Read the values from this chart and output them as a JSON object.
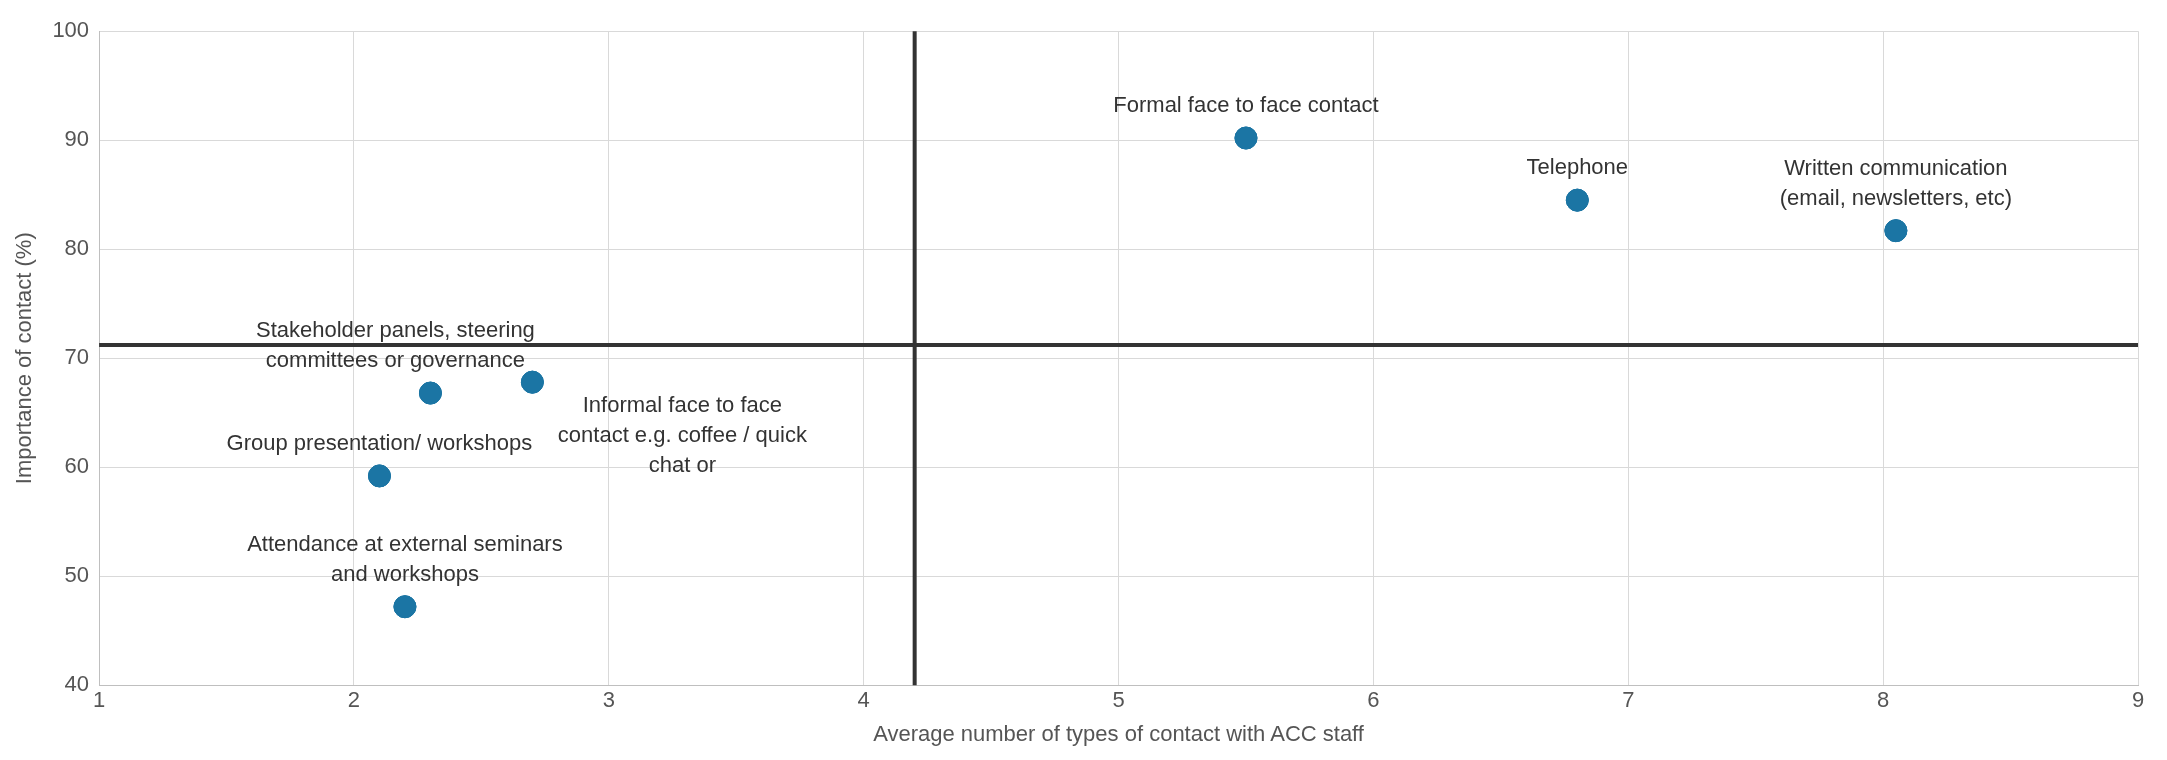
{
  "chart_data": {
    "type": "scatter",
    "xlabel": "Average number of types of contact with ACC staff",
    "ylabel": "Importance of contact (%)",
    "x": [
      5.5,
      6.8,
      8.05,
      2.3,
      2.7,
      2.1,
      2.2
    ],
    "series": [
      {
        "color": "#1b75a4",
        "values": [
          90.2,
          84.5,
          81.7,
          66.8,
          67.8,
          59.2,
          47.2
        ]
      }
    ],
    "xlim": [
      1,
      9
    ],
    "xticks": [
      1,
      2,
      3,
      4,
      5,
      6,
      7,
      8,
      9
    ],
    "ylim": [
      40,
      100
    ],
    "yticks": [
      40,
      50,
      60,
      70,
      80,
      90,
      100
    ],
    "grid": true,
    "legend": false,
    "marker": "circle",
    "ref_lines": [
      {
        "axis": "x",
        "value": 4.2,
        "color": "#333333"
      },
      {
        "axis": "y",
        "value": 71.2,
        "color": "#333333"
      }
    ],
    "annotations": [
      {
        "text": "Formal face to face contact",
        "x": 5.5,
        "y": 90.2
      },
      {
        "text": "Telephone",
        "x": 6.8,
        "y": 84.5
      },
      {
        "text": "Written communication\n(email, newsletters, etc)",
        "x": 8.05,
        "y": 81.7
      },
      {
        "text": "Stakeholder panels, steering\ncommittees or governance",
        "x": 2.3,
        "y": 66.8
      },
      {
        "text": "Informal face to face\ncontact e.g. coffee / quick\nchat or",
        "x": 2.7,
        "y": 67.8
      },
      {
        "text": "Group presentation/ workshops",
        "x": 2.1,
        "y": 59.2
      },
      {
        "text": "Attendance at external seminars\nand workshops",
        "x": 2.2,
        "y": 47.2
      }
    ]
  }
}
